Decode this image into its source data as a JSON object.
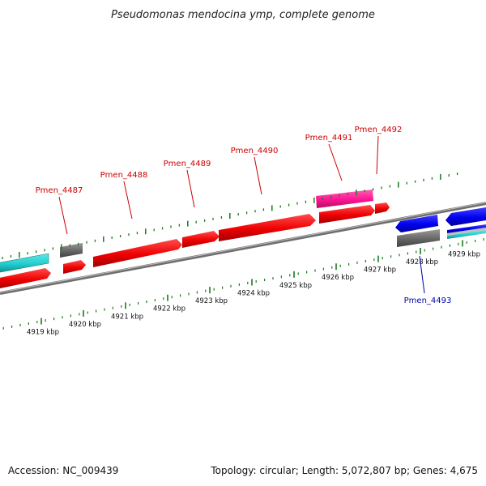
{
  "title": "Pseudomonas mendocina ymp, complete genome",
  "footer": {
    "accession": "Accession: NC_009439",
    "summary": "Topology: circular; Length: 5,072,807 bp; Genes: 4,675"
  },
  "colors": {
    "forward_gene": "#ff0000",
    "reverse_gene": "#0000ee",
    "rna_gene": "#ff1493",
    "pseudo_gene": "#666666",
    "cyan_feature": "#22cccc",
    "tick": "#1a7a1a",
    "forward_label": "#cc0000",
    "reverse_label": "#0000aa"
  },
  "ticks": [
    "4919 kbp",
    "4920 kbp",
    "4921 kbp",
    "4922 kbp",
    "4923 kbp",
    "4924 kbp",
    "4925 kbp",
    "4926 kbp",
    "4927 kbp",
    "4928 kbp",
    "4929 kbp"
  ],
  "gene_labels": [
    {
      "text": "Pmen_4487",
      "strand": "forward"
    },
    {
      "text": "Pmen_4488",
      "strand": "forward"
    },
    {
      "text": "Pmen_4489",
      "strand": "forward"
    },
    {
      "text": "Pmen_4490",
      "strand": "forward"
    },
    {
      "text": "Pmen_4491",
      "strand": "forward"
    },
    {
      "text": "Pmen_4492",
      "strand": "forward"
    },
    {
      "text": "Pmen_4493",
      "strand": "reverse"
    }
  ]
}
